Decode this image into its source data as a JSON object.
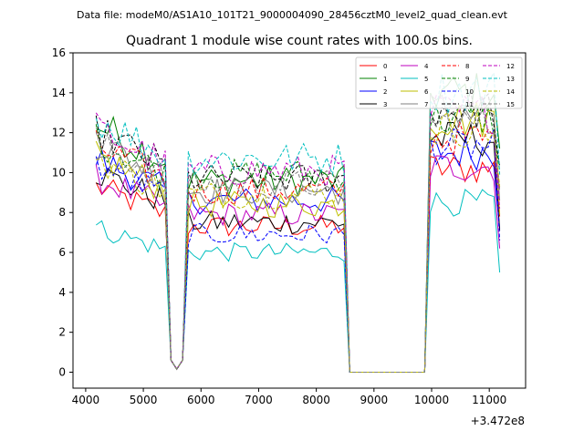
{
  "figure": {
    "suptitle": "Data file: modeM0/AS1A10_101T21_9000004090_28456cztM0_level2_quad_clean.evt"
  },
  "chart_data": {
    "type": "line",
    "title": "Quadrant 1 module wise count rates with 100.0s bins.",
    "xlabel": "",
    "ylabel": "",
    "offset_text": "+3.472e8",
    "xlim": [
      3780,
      11630
    ],
    "ylim": [
      -0.8,
      16
    ],
    "x_ticks": [
      4000,
      5000,
      6000,
      7000,
      8000,
      9000,
      10000,
      11000
    ],
    "x_tick_labels": [
      "4000",
      "5000",
      "6000",
      "7000",
      "8000",
      "9000",
      "10000",
      "11000"
    ],
    "y_ticks": [
      0,
      2,
      4,
      6,
      8,
      10,
      12,
      14,
      16
    ],
    "y_tick_labels": [
      "0",
      "2",
      "4",
      "6",
      "8",
      "10",
      "12",
      "14",
      "16"
    ],
    "grid": false,
    "legend_location": "upper-right",
    "legend_columns": 4,
    "segments": [
      {
        "x_start": 4180,
        "x_end": 5380
      },
      {
        "x_start": 5780,
        "x_end": 8480
      },
      {
        "x_start": 9980,
        "x_end": 11180
      }
    ],
    "gaps": [
      {
        "x": [
          5480,
          5580,
          5680
        ],
        "values": [
          0.6,
          0.15,
          0.6
        ],
        "descending_end": 5480
      },
      {
        "x": [
          8580,
          8680,
          9780,
          9880
        ],
        "values": [
          0,
          0,
          0,
          0
        ]
      }
    ],
    "series": [
      {
        "name": "0",
        "color": "#ff0000",
        "dash": "solid",
        "levels": [
          8.6,
          7.3,
          10.2
        ],
        "last": 7.8
      },
      {
        "name": "1",
        "color": "#008000",
        "dash": "solid",
        "levels": [
          11.5,
          9.6,
          14.0
        ],
        "last": 11.2
      },
      {
        "name": "2",
        "color": "#0000ff",
        "dash": "solid",
        "levels": [
          9.9,
          8.6,
          11.0
        ],
        "last": 7.2
      },
      {
        "name": "3",
        "color": "#000000",
        "dash": "solid",
        "levels": [
          9.3,
          7.5,
          11.7
        ],
        "last": 7.1
      },
      {
        "name": "4",
        "color": "#bf00bf",
        "dash": "solid",
        "levels": [
          9.0,
          7.9,
          10.3
        ],
        "last": 6.2
      },
      {
        "name": "5",
        "color": "#00bfbf",
        "dash": "solid",
        "levels": [
          6.7,
          6.0,
          8.5
        ],
        "last": 5.0
      },
      {
        "name": "6",
        "color": "#bfbf00",
        "dash": "solid",
        "levels": [
          10.0,
          8.4,
          12.7
        ],
        "last": 7.9
      },
      {
        "name": "7",
        "color": "#808080",
        "dash": "solid",
        "levels": [
          10.7,
          9.1,
          13.1
        ],
        "last": 8.6
      },
      {
        "name": "8",
        "color": "#ff0000",
        "dash": "dashed",
        "levels": [
          10.5,
          9.1,
          11.7
        ],
        "last": 9.2
      },
      {
        "name": "9",
        "color": "#008000",
        "dash": "dashed",
        "levels": [
          10.8,
          9.9,
          12.7
        ],
        "last": 10.1
      },
      {
        "name": "10",
        "color": "#0000ff",
        "dash": "dashed",
        "levels": [
          9.6,
          6.9,
          11.3
        ],
        "last": 6.6
      },
      {
        "name": "11",
        "color": "#000000",
        "dash": "dashed",
        "levels": [
          11.2,
          9.7,
          13.2
        ],
        "last": 10.3
      },
      {
        "name": "12",
        "color": "#bf00bf",
        "dash": "dashed",
        "levels": [
          11.3,
          10.1,
          13.0
        ],
        "last": 8.2
      },
      {
        "name": "13",
        "color": "#00bfbf",
        "dash": "dashed",
        "levels": [
          11.8,
          10.7,
          14.1
        ],
        "last": 9.9
      },
      {
        "name": "14",
        "color": "#bfbf00",
        "dash": "dashed",
        "levels": [
          9.9,
          8.9,
          12.2
        ],
        "last": 9.3
      },
      {
        "name": "15",
        "color": "#808080",
        "dash": "dashed",
        "levels": [
          10.6,
          9.4,
          12.4
        ],
        "last": 9.1
      }
    ]
  }
}
